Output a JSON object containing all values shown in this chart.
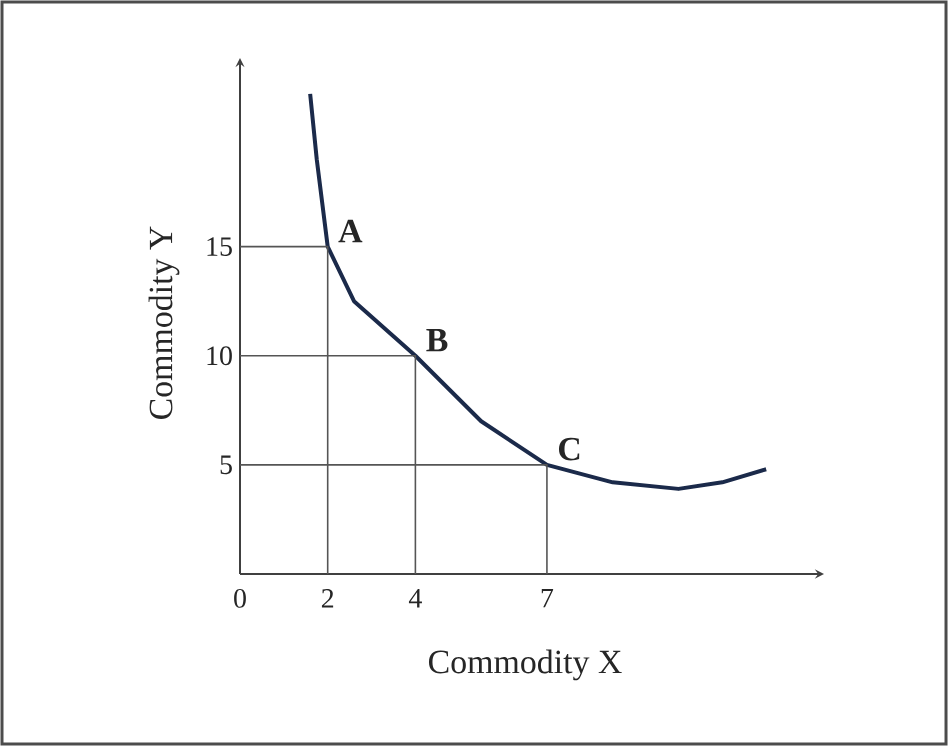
{
  "chart_data": {
    "type": "line",
    "xlabel": "Commodity  X",
    "ylabel": "Commodity  Y",
    "xlim": [
      0,
      13
    ],
    "ylim": [
      0,
      23
    ],
    "xticks": [
      0,
      2,
      4,
      7
    ],
    "yticks": [
      5,
      10,
      15
    ],
    "series": [
      {
        "color": "#1b2a4a",
        "x": [
          1.6,
          1.75,
          2,
          2.6,
          4,
          5.5,
          7,
          8.5,
          10,
          11,
          12
        ],
        "values": [
          22,
          19,
          15,
          12.5,
          10,
          7,
          5,
          4.2,
          3.9,
          4.2,
          4.8
        ]
      },
      {
        "color": "#555555",
        "x": [
          0,
          2,
          2
        ],
        "values": [
          15,
          15,
          0
        ]
      },
      {
        "color": "#555555",
        "x": [
          0,
          4,
          4
        ],
        "values": [
          10,
          10,
          0
        ]
      },
      {
        "color": "#555555",
        "x": [
          0,
          7,
          7
        ],
        "values": [
          5,
          5,
          0
        ]
      }
    ],
    "annotations": [
      {
        "text": "A",
        "x": 2,
        "y": 15
      },
      {
        "text": "B",
        "x": 4,
        "y": 10
      },
      {
        "text": "C",
        "x": 7,
        "y": 5
      }
    ]
  }
}
